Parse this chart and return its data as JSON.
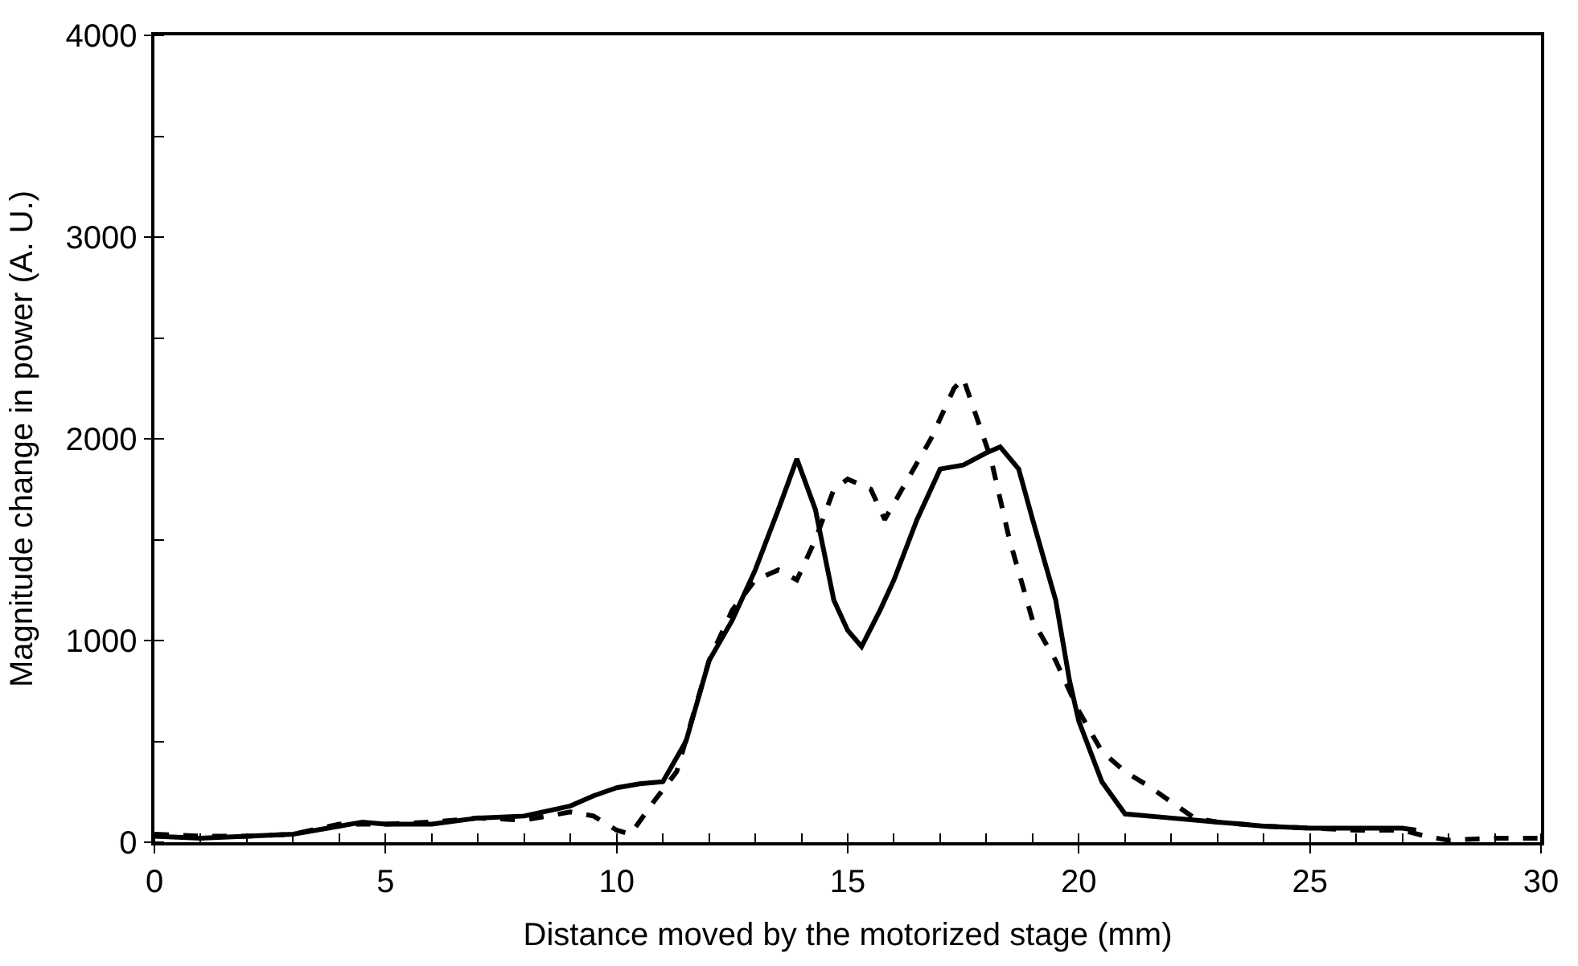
{
  "chart_data": {
    "type": "line",
    "xlabel": "Distance moved by the motorized stage (mm)",
    "ylabel": "Magnitude change in power (A. U.)",
    "xlim": [
      0,
      30
    ],
    "xticks": [
      0,
      5,
      10,
      15,
      20,
      25,
      30
    ],
    "ylim": [
      0,
      4000
    ],
    "yticks": [
      0,
      1000,
      2000,
      3000,
      4000
    ],
    "legend": false,
    "series": [
      {
        "color": "#000000",
        "line_style": "solid",
        "x": [
          0,
          1,
          2,
          3,
          4,
          4.5,
          5,
          6,
          7,
          8,
          9,
          9.5,
          10,
          10.5,
          11,
          11.5,
          12,
          12.5,
          13,
          13.5,
          13.9,
          14.3,
          14.7,
          15,
          15.3,
          15.7,
          16,
          16.5,
          17,
          17.5,
          18,
          18.3,
          18.7,
          19,
          19.5,
          19.8,
          20,
          20.5,
          21,
          22,
          23,
          24,
          25,
          26,
          27,
          27.3
        ],
        "values": [
          30,
          20,
          30,
          40,
          80,
          100,
          90,
          90,
          120,
          130,
          180,
          230,
          270,
          290,
          300,
          500,
          900,
          1100,
          1350,
          1650,
          1900,
          1650,
          1200,
          1050,
          970,
          1150,
          1300,
          1600,
          1850,
          1870,
          1930,
          1960,
          1850,
          1600,
          1200,
          800,
          600,
          300,
          140,
          120,
          100,
          80,
          70,
          70,
          70,
          60
        ]
      },
      {
        "color": "#000000",
        "line_style": "dashed",
        "x": [
          0,
          1,
          2,
          3,
          4,
          5,
          6,
          7,
          8,
          9,
          9.5,
          10,
          10.3,
          10.8,
          11.3,
          12,
          12.5,
          13,
          13.5,
          13.9,
          14.3,
          14.7,
          15,
          15.5,
          15.8,
          16.3,
          16.8,
          17.3,
          17.5,
          17.8,
          18.1,
          18.5,
          19,
          19.5,
          20,
          20.5,
          21,
          21.5,
          22,
          22.5,
          23,
          24,
          25,
          26,
          27,
          27.5,
          28,
          29,
          30
        ],
        "values": [
          40,
          30,
          30,
          40,
          90,
          90,
          100,
          120,
          110,
          150,
          130,
          60,
          40,
          200,
          350,
          900,
          1150,
          1300,
          1350,
          1300,
          1500,
          1750,
          1800,
          1750,
          1600,
          1800,
          2000,
          2250,
          2300,
          2100,
          1900,
          1500,
          1100,
          900,
          650,
          450,
          350,
          280,
          200,
          120,
          100,
          80,
          70,
          60,
          60,
          30,
          10,
          20,
          20
        ]
      }
    ]
  }
}
